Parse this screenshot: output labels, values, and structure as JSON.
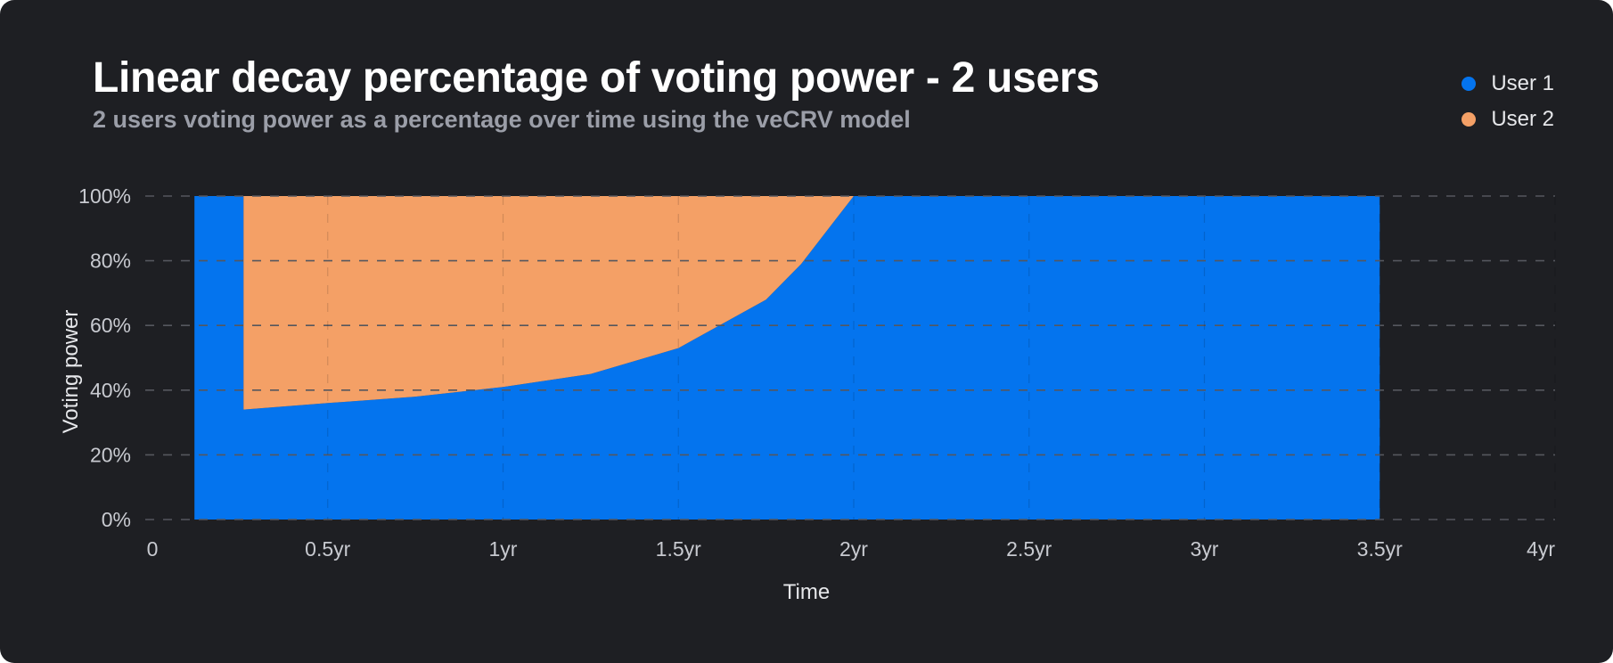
{
  "title": "Linear decay percentage of voting power - 2 users",
  "subtitle": "2 users voting power as a percentage over time using the veCRV model",
  "colors": {
    "background": "#1e1f23",
    "user1": "#0474ee",
    "user2": "#f4a066",
    "grid": "#55575e"
  },
  "chart_data": {
    "type": "area",
    "stacked": true,
    "percent": true,
    "xlabel": "Time",
    "ylabel": "Voting power",
    "xlim": [
      0,
      4
    ],
    "ylim": [
      0,
      100
    ],
    "x_ticks": [
      {
        "value": 0,
        "label": "0"
      },
      {
        "value": 0.5,
        "label": "0.5yr"
      },
      {
        "value": 1,
        "label": "1yr"
      },
      {
        "value": 1.5,
        "label": "1.5yr"
      },
      {
        "value": 2,
        "label": "2yr"
      },
      {
        "value": 2.5,
        "label": "2.5yr"
      },
      {
        "value": 3,
        "label": "3yr"
      },
      {
        "value": 3.5,
        "label": "3.5yr"
      },
      {
        "value": 4,
        "label": "4yr"
      }
    ],
    "y_ticks": [
      {
        "value": 0,
        "label": "0%"
      },
      {
        "value": 20,
        "label": "20%"
      },
      {
        "value": 40,
        "label": "40%"
      },
      {
        "value": 60,
        "label": "60%"
      },
      {
        "value": 80,
        "label": "80%"
      },
      {
        "value": 100,
        "label": "100%"
      }
    ],
    "grid": true,
    "legend_position": "top-right",
    "series": [
      {
        "name": "User 1",
        "color": "#0474ee",
        "x": [
          0.12,
          0.26,
          0.26,
          0.5,
          0.75,
          1.0,
          1.25,
          1.5,
          1.75,
          1.85,
          1.95,
          2.0,
          3.5
        ],
        "values": [
          100,
          100,
          34,
          36,
          38,
          41,
          45,
          53,
          68,
          79,
          93,
          100,
          100
        ]
      },
      {
        "name": "User 2",
        "color": "#f4a066",
        "x": [
          0.12,
          0.26,
          0.26,
          0.5,
          0.75,
          1.0,
          1.25,
          1.5,
          1.75,
          1.85,
          1.95,
          2.0,
          3.5
        ],
        "values": [
          0,
          0,
          66,
          64,
          62,
          59,
          55,
          47,
          32,
          21,
          7,
          0,
          0
        ]
      }
    ]
  }
}
